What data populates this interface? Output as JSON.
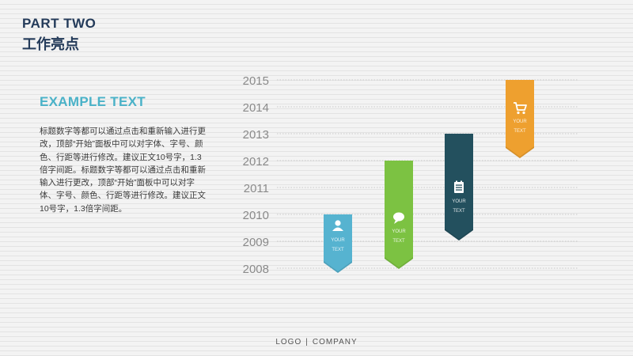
{
  "header": {
    "title": "PART TWO",
    "subtitle": "工作亮点"
  },
  "content": {
    "heading": "EXAMPLE TEXT",
    "body": "标题数字等都可以通过点击和重新输入进行更改，顶部“开始”面板中可以对字体、字号、颜色、行距等进行修改。建议正文10号字，1.3倍字间距。标题数字等都可以通过点击和重新输入进行更改，顶部“开始”面板中可以对字体、字号、颜色、行距等进行修改。建议正文10号字，1.3倍字间距。"
  },
  "footer": {
    "logo": "LOGO",
    "separator": "|",
    "company": "COMPANY"
  },
  "colors": {
    "title": "#243b5a",
    "accent": "#4ab2c8",
    "axis_text": "#8a8a8a",
    "gridline": "#c9c9c9"
  },
  "chart_data": {
    "type": "bar",
    "y_ticks": [
      "2015",
      "2014",
      "2013",
      "2012",
      "2011",
      "2010",
      "2009",
      "2008"
    ],
    "ylim": [
      2008,
      2015
    ],
    "grid": true,
    "bars": [
      {
        "value": 2010,
        "color": "#56b3d0",
        "icon": "user-icon",
        "label1": "YOUR",
        "label2": "TEXT"
      },
      {
        "value": 2012,
        "color": "#7cc242",
        "icon": "chat-icon",
        "label1": "YOUR",
        "label2": "TEXT"
      },
      {
        "value": 2013,
        "color": "#23505e",
        "icon": "document-icon",
        "label1": "YOUR",
        "label2": "TEXT"
      },
      {
        "value": 2015,
        "color": "#eea02f",
        "icon": "cart-icon",
        "label1": "YOUR",
        "label2": "TEXT"
      }
    ]
  }
}
